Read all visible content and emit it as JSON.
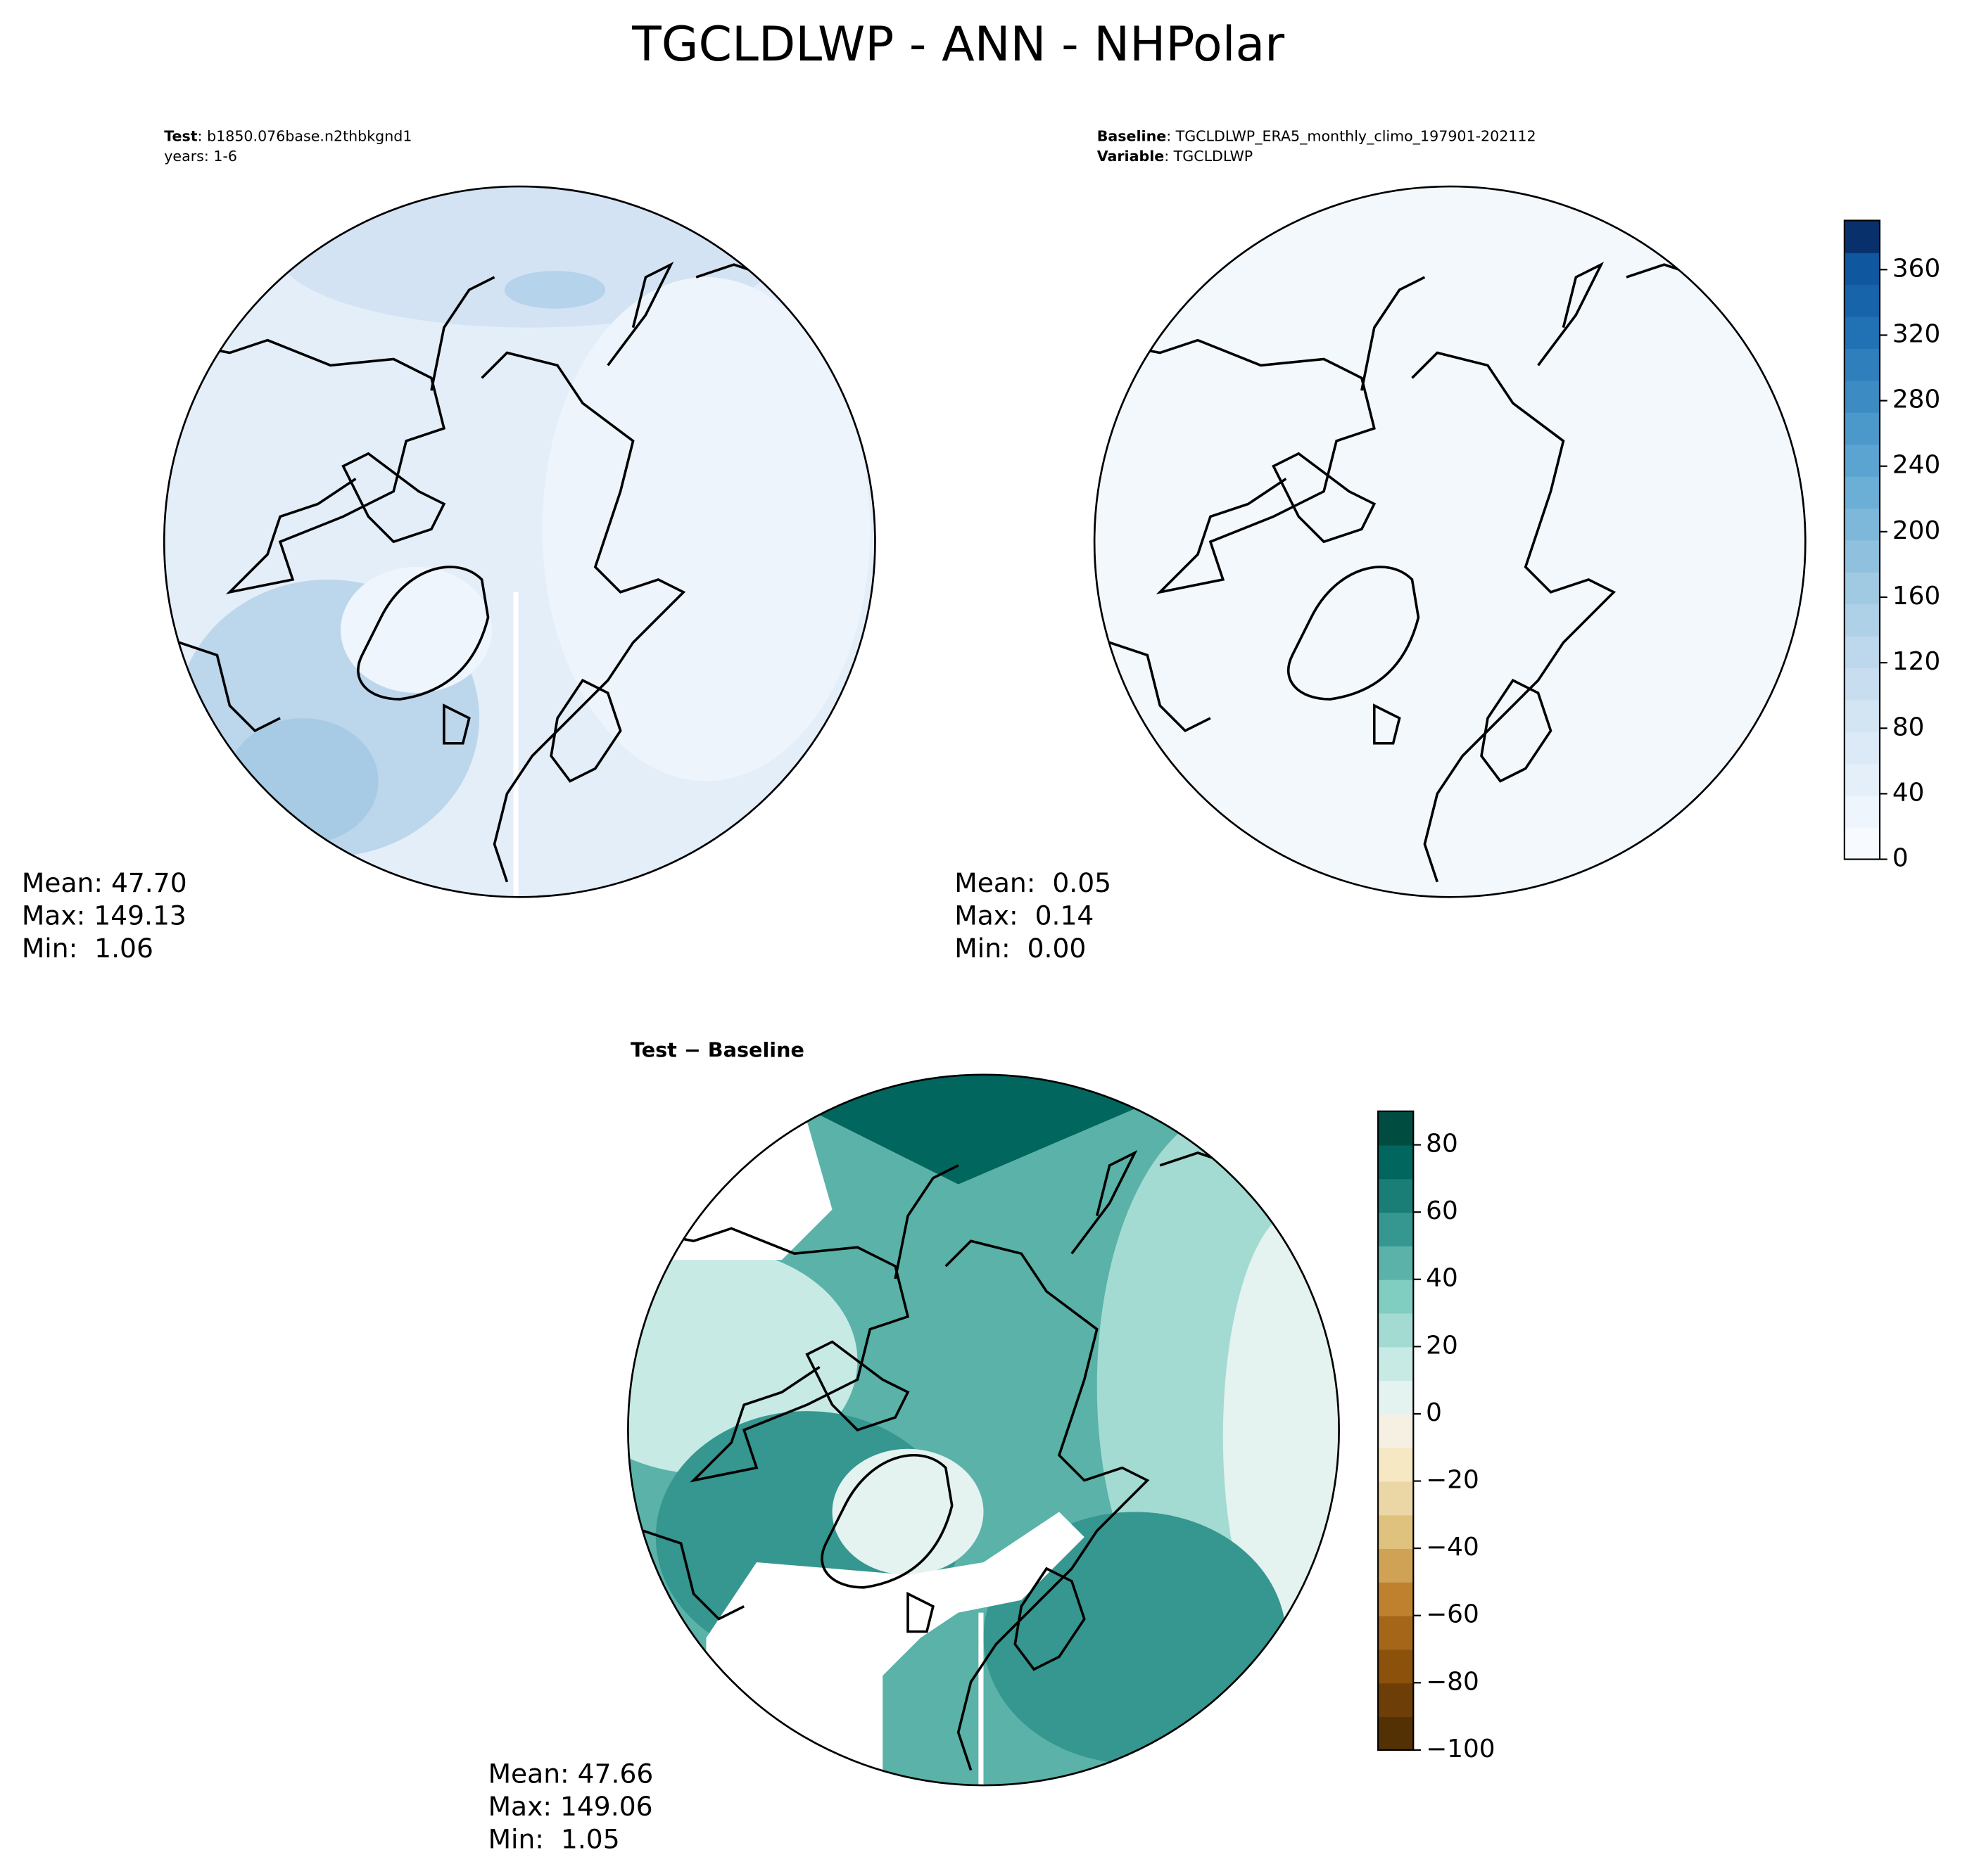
{
  "title": "TGCLDLWP - ANN - NHPolar",
  "chart_data": [
    {
      "type": "map",
      "header": [
        {
          "label": "Test",
          "text": ": b1850.076base.n2thbkgnd1"
        },
        {
          "text": "years: 1-6"
        }
      ],
      "stats": [
        "Mean: 47.70",
        "Max: 149.13",
        "Min:  1.06"
      ]
    },
    {
      "type": "map",
      "header": [
        {
          "label": "Baseline",
          "text": ": TGCLDLWP_ERA5_monthly_climo_197901-202112"
        },
        {
          "label": "Variable",
          "text": ": TGCLDLWP"
        }
      ],
      "stats": [
        "Mean:  0.05",
        "Max:  0.14",
        "Min:  0.00"
      ],
      "colorbar": {
        "ylim": [
          0,
          390
        ],
        "yticks": [
          0,
          40,
          80,
          120,
          160,
          200,
          240,
          280,
          320,
          360
        ],
        "colors": [
          "#f7fbff",
          "#eef5fc",
          "#e5eff9",
          "#dce9f6",
          "#d3e4f3",
          "#c9ddf0",
          "#bdd7ec",
          "#afd1e7",
          "#a0cae1",
          "#8fc1de",
          "#7db8da",
          "#6baed6",
          "#5ba3d0",
          "#4b98ca",
          "#3c8cc3",
          "#2f7fbc",
          "#2171b5",
          "#1864aa",
          "#0f579f",
          "#08306b"
        ]
      }
    },
    {
      "type": "map",
      "title": "Test − Baseline",
      "stats": [
        "Mean: 47.66",
        "Max: 149.06",
        "Min:  1.05"
      ],
      "colorbar": {
        "ylim": [
          -100,
          90
        ],
        "yticks": [
          {
            "value": -100,
            "label": "−100"
          },
          {
            "value": -80,
            "label": "−80"
          },
          {
            "value": -60,
            "label": "−60"
          },
          {
            "value": -40,
            "label": "−40"
          },
          {
            "value": -20,
            "label": "−20"
          },
          0,
          20,
          40,
          60,
          80
        ],
        "colors": [
          "#543005",
          "#6d3e08",
          "#8c510a",
          "#a6661a",
          "#bf812d",
          "#cfa255",
          "#dfc27d",
          "#ebd7a6",
          "#f6e8c3",
          "#f5f0e1",
          "#e4f2f0",
          "#c7eae5",
          "#a3dbd2",
          "#80cdc1",
          "#5ab2a8",
          "#35978f",
          "#1a7d76",
          "#01665e",
          "#004c41"
        ]
      }
    }
  ]
}
